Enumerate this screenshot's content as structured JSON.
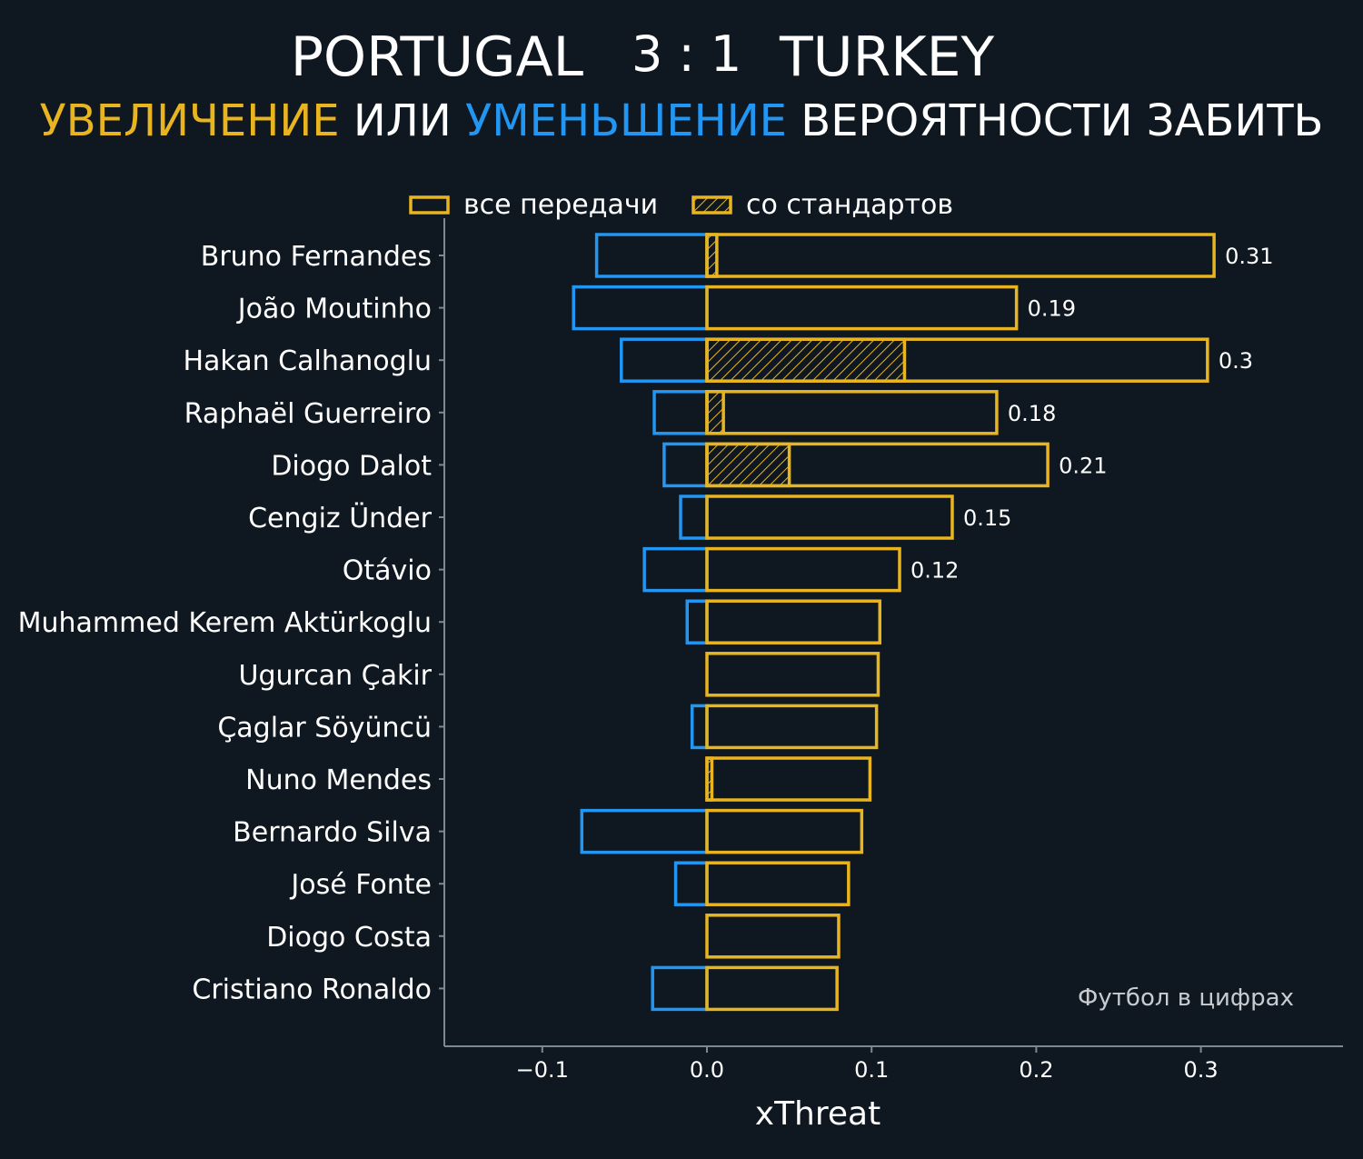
{
  "header": {
    "home_team": "PORTUGAL",
    "score": "3 : 1",
    "away_team": "TURKEY",
    "subtitle_part1": "УВЕЛИЧЕНИЕ",
    "subtitle_part2": " ИЛИ ",
    "subtitle_part3": "УМЕНЬШЕНИЕ",
    "subtitle_part4": " ВЕРОЯТНОСТИ ЗАБИТЬ"
  },
  "colors": {
    "background": "#0f1820",
    "increase": "#e8b520",
    "decrease": "#2196f3",
    "text": "#ffffff",
    "axis": "#7a8a90"
  },
  "watermark": "Футбол в цифрах",
  "chart_data": {
    "type": "bar",
    "orientation": "horizontal",
    "xlabel": "xThreat",
    "xlim": [
      -0.16,
      0.385
    ],
    "xticks": [
      -0.1,
      0.0,
      0.1,
      0.2,
      0.3
    ],
    "xtick_labels": [
      "−0.1",
      "0.0",
      "0.1",
      "0.2",
      "0.3"
    ],
    "legend": {
      "position": "top",
      "entries": [
        "все передачи",
        "со стандартов"
      ]
    },
    "categories": [
      "Bruno Fernandes",
      "João Moutinho",
      "Hakan Calhanoglu",
      "Raphaël Guerreiro",
      "Diogo Dalot",
      "Cengiz Ünder",
      "Otávio",
      "Muhammed Kerem Aktürkoglu",
      "Ugurcan Çakir",
      "Çaglar Söyüncü",
      "Nuno Mendes",
      "Bernardo Silva",
      "José Fonte",
      "Diogo Costa",
      "Cristiano Ronaldo"
    ],
    "series": [
      {
        "name": "все передачи",
        "values": [
          0.308,
          0.188,
          0.304,
          0.176,
          0.207,
          0.149,
          0.117,
          0.105,
          0.104,
          0.103,
          0.099,
          0.094,
          0.086,
          0.08,
          0.079
        ]
      },
      {
        "name": "со стандартов",
        "values": [
          0.006,
          0,
          0.12,
          0.01,
          0.05,
          0,
          0,
          0,
          0,
          0,
          0.003,
          0,
          0,
          0,
          0
        ]
      },
      {
        "name": "negative",
        "values": [
          -0.067,
          -0.081,
          -0.052,
          -0.032,
          -0.026,
          -0.016,
          -0.038,
          -0.012,
          0,
          -0.009,
          0,
          -0.076,
          -0.019,
          0,
          -0.033
        ]
      }
    ],
    "data_labels": [
      "0.31",
      "0.19",
      "0.3",
      "0.18",
      "0.21",
      "0.15",
      "0.12",
      "",
      "",
      "",
      "",
      "",
      "",
      "",
      ""
    ]
  }
}
